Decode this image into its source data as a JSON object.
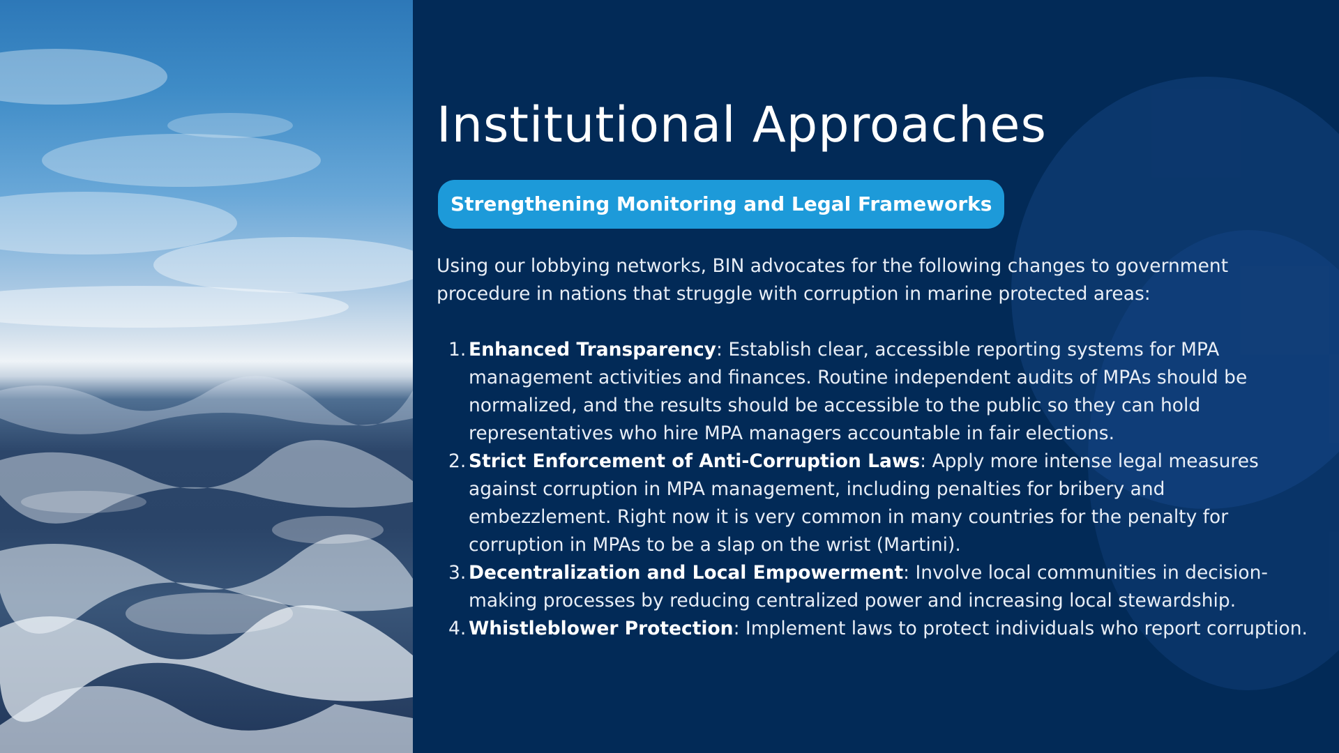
{
  "slide": {
    "title": "Institutional Approaches",
    "subtitle_pill": "Strengthening Monitoring and Legal Frameworks",
    "intro": "Using our lobbying networks, BIN advocates for the following changes to government procedure in nations that struggle with corruption in marine protected areas:",
    "items": [
      {
        "number": "1.",
        "heading": "Enhanced Transparency",
        "text": ": Establish clear, accessible reporting systems for MPA management activities and finances. Routine independent audits of MPAs should be normalized, and the results should be accessible to the public so they can hold representatives who hire MPA managers accountable in fair elections."
      },
      {
        "number": "2.",
        "heading": "Strict Enforcement of Anti-Corruption Laws",
        "text": ": Apply more intense legal measures against corruption in MPA management, including penalties for bribery and embezzlement. Right now it is very common in many countries for the penalty for corruption in MPAs to be a slap on the wrist (Martini)."
      },
      {
        "number": "3.",
        "heading": "Decentralization and Local Empowerment",
        "text": ": Involve local communities in decision-making processes by reducing centralized power and increasing local stewardship."
      },
      {
        "number": "4.",
        "heading": "Whistleblower Protection",
        "text": ": Implement laws to protect individuals who report corruption."
      }
    ]
  },
  "colors": {
    "background": "#022a57",
    "pill": "#1d9ad9",
    "text": "#e8eef6"
  }
}
